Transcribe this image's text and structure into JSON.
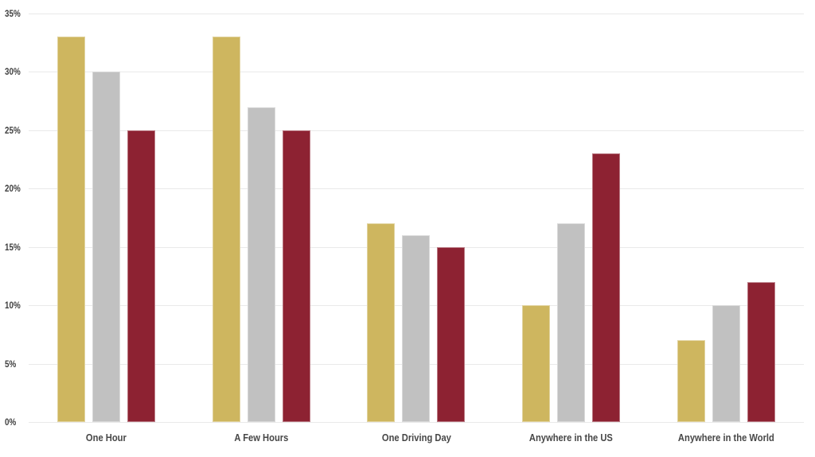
{
  "chart_data": {
    "type": "bar",
    "title": "",
    "categories": [
      "One Hour",
      "A Few Hours",
      "One Driving Day",
      "Anywhere in the US",
      "Anywhere in the World"
    ],
    "series": [
      {
        "name": "gold",
        "color": "#CEB65F",
        "values": [
          33,
          33,
          17,
          10,
          7
        ]
      },
      {
        "name": "gray",
        "color": "#C1C1C1",
        "values": [
          30,
          27,
          16,
          17,
          10
        ]
      },
      {
        "name": "red",
        "color": "#8D2232",
        "values": [
          25,
          25,
          15,
          23,
          12
        ]
      }
    ],
    "xlabel": "",
    "ylabel": "",
    "ylim": [
      0,
      35
    ],
    "y_tick_step": 5,
    "y_tick_labels": [
      "0%",
      "5%",
      "10%",
      "15%",
      "20%",
      "25%",
      "30%",
      "35%"
    ],
    "grid": true,
    "legend_position": "none"
  },
  "colors": {
    "background": "#ffffff",
    "gridline": "#e9e9e9",
    "tick_text": "#3f3f3f",
    "category_text": "#474747"
  }
}
